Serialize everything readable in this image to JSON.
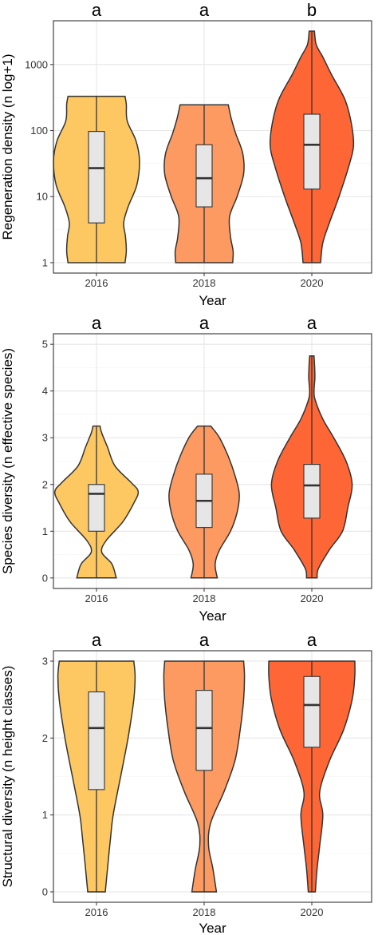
{
  "chart_data": [
    {
      "type": "violin",
      "xlabel": "Year",
      "ylabel": "Regeneration density (n log+1)",
      "y_scale": "log",
      "ylim": [
        1,
        3200
      ],
      "yticks": [
        1,
        10,
        100,
        1000
      ],
      "ytick_labels": [
        "1",
        "10",
        "100",
        "1000"
      ],
      "categories": [
        "2016",
        "2018",
        "2020"
      ],
      "significance": [
        "a",
        "a",
        "b"
      ],
      "colors": [
        "#FDC861",
        "#FD9A61",
        "#FE6735"
      ],
      "grid": true,
      "groups": [
        {
          "category": "2016",
          "min": 1,
          "q1": 4,
          "median": 27,
          "q3": 97,
          "max": 330,
          "density": [
            [
              1,
              0.65
            ],
            [
              1.5,
              0.68
            ],
            [
              2.5,
              0.66
            ],
            [
              4,
              0.62
            ],
            [
              7,
              0.72
            ],
            [
              15,
              0.92
            ],
            [
              35,
              0.98
            ],
            [
              70,
              0.9
            ],
            [
              140,
              0.7
            ],
            [
              250,
              0.68
            ],
            [
              330,
              0.65
            ]
          ]
        },
        {
          "category": "2018",
          "min": 1,
          "q1": 7,
          "median": 19,
          "q3": 61,
          "max": 245,
          "density": [
            [
              1,
              0.65
            ],
            [
              1.5,
              0.66
            ],
            [
              2.5,
              0.6
            ],
            [
              5,
              0.58
            ],
            [
              10,
              0.75
            ],
            [
              22,
              0.9
            ],
            [
              45,
              0.88
            ],
            [
              90,
              0.72
            ],
            [
              150,
              0.62
            ],
            [
              245,
              0.55
            ]
          ]
        },
        {
          "category": "2020",
          "min": 1,
          "q1": 13,
          "median": 61,
          "q3": 177,
          "max": 3200,
          "density": [
            [
              1,
              0.2
            ],
            [
              2,
              0.25
            ],
            [
              4,
              0.4
            ],
            [
              10,
              0.62
            ],
            [
              30,
              0.85
            ],
            [
              60,
              0.95
            ],
            [
              130,
              0.9
            ],
            [
              300,
              0.75
            ],
            [
              700,
              0.45
            ],
            [
              1300,
              0.25
            ],
            [
              2000,
              0.1
            ],
            [
              3200,
              0.06
            ]
          ]
        }
      ]
    },
    {
      "type": "violin",
      "xlabel": "Year",
      "ylabel": "Species diversity (n effective species)",
      "ylim": [
        0,
        5
      ],
      "yticks": [
        0,
        1,
        2,
        3,
        4,
        5
      ],
      "ytick_labels": [
        "0",
        "1",
        "2",
        "3",
        "4",
        "5"
      ],
      "categories": [
        "2016",
        "2018",
        "2020"
      ],
      "significance": [
        "a",
        "a",
        "a"
      ],
      "colors": [
        "#FDC861",
        "#FD9A61",
        "#FE6735"
      ],
      "grid": true,
      "groups": [
        {
          "category": "2016",
          "min": 0,
          "q1": 1,
          "median": 1.8,
          "q3": 2,
          "max": 3.25,
          "density": [
            [
              0,
              0.45
            ],
            [
              0.3,
              0.35
            ],
            [
              0.55,
              0.12
            ],
            [
              0.8,
              0.22
            ],
            [
              1.2,
              0.6
            ],
            [
              1.6,
              0.85
            ],
            [
              1.85,
              0.95
            ],
            [
              2.05,
              0.78
            ],
            [
              2.4,
              0.42
            ],
            [
              2.8,
              0.25
            ],
            [
              3.1,
              0.12
            ],
            [
              3.25,
              0.08
            ]
          ]
        },
        {
          "category": "2018",
          "min": 0,
          "q1": 1.08,
          "median": 1.65,
          "q3": 2.22,
          "max": 3.25,
          "density": [
            [
              0,
              0.3
            ],
            [
              0.3,
              0.25
            ],
            [
              0.6,
              0.35
            ],
            [
              1.0,
              0.6
            ],
            [
              1.4,
              0.75
            ],
            [
              1.8,
              0.8
            ],
            [
              2.2,
              0.7
            ],
            [
              2.6,
              0.55
            ],
            [
              3.0,
              0.35
            ],
            [
              3.25,
              0.15
            ]
          ]
        },
        {
          "category": "2020",
          "min": 0,
          "q1": 1.28,
          "median": 1.98,
          "q3": 2.43,
          "max": 4.75,
          "density": [
            [
              0,
              0.12
            ],
            [
              0.2,
              0.15
            ],
            [
              0.6,
              0.4
            ],
            [
              1.0,
              0.7
            ],
            [
              1.5,
              0.82
            ],
            [
              2.0,
              0.92
            ],
            [
              2.5,
              0.78
            ],
            [
              3.0,
              0.5
            ],
            [
              3.4,
              0.25
            ],
            [
              3.8,
              0.08
            ],
            [
              4.0,
              0.05
            ],
            [
              4.3,
              0.07
            ],
            [
              4.6,
              0.06
            ],
            [
              4.75,
              0.05
            ]
          ]
        }
      ]
    },
    {
      "type": "violin",
      "xlabel": "Year",
      "ylabel": "Structural diversity (n height classes)",
      "ylim": [
        0,
        3
      ],
      "yticks": [
        0,
        1,
        2,
        3
      ],
      "ytick_labels": [
        "0",
        "1",
        "2",
        "3"
      ],
      "categories": [
        "2016",
        "2018",
        "2020"
      ],
      "significance": [
        "a",
        "a",
        "a"
      ],
      "colors": [
        "#FDC861",
        "#FD9A61",
        "#FE6735"
      ],
      "grid": true,
      "groups": [
        {
          "category": "2016",
          "min": 0,
          "q1": 1.33,
          "median": 2.13,
          "q3": 2.6,
          "max": 3,
          "density": [
            [
              0,
              0.2
            ],
            [
              0.3,
              0.25
            ],
            [
              0.7,
              0.32
            ],
            [
              1.0,
              0.38
            ],
            [
              1.5,
              0.55
            ],
            [
              2.0,
              0.72
            ],
            [
              2.5,
              0.85
            ],
            [
              2.8,
              0.88
            ],
            [
              3.0,
              0.85
            ]
          ]
        },
        {
          "category": "2018",
          "min": 0,
          "q1": 1.58,
          "median": 2.13,
          "q3": 2.62,
          "max": 3,
          "density": [
            [
              0,
              0.28
            ],
            [
              0.3,
              0.2
            ],
            [
              0.6,
              0.1
            ],
            [
              0.9,
              0.15
            ],
            [
              1.3,
              0.45
            ],
            [
              1.7,
              0.7
            ],
            [
              2.1,
              0.82
            ],
            [
              2.5,
              0.9
            ],
            [
              2.8,
              0.92
            ],
            [
              3.0,
              0.9
            ]
          ]
        },
        {
          "category": "2020",
          "min": 0,
          "q1": 1.88,
          "median": 2.43,
          "q3": 2.8,
          "max": 3,
          "density": [
            [
              0,
              0.08
            ],
            [
              0.3,
              0.12
            ],
            [
              0.6,
              0.18
            ],
            [
              1.0,
              0.25
            ],
            [
              1.3,
              0.18
            ],
            [
              1.7,
              0.4
            ],
            [
              2.1,
              0.72
            ],
            [
              2.5,
              0.92
            ],
            [
              2.8,
              0.98
            ],
            [
              3.0,
              0.98
            ]
          ]
        }
      ]
    }
  ]
}
